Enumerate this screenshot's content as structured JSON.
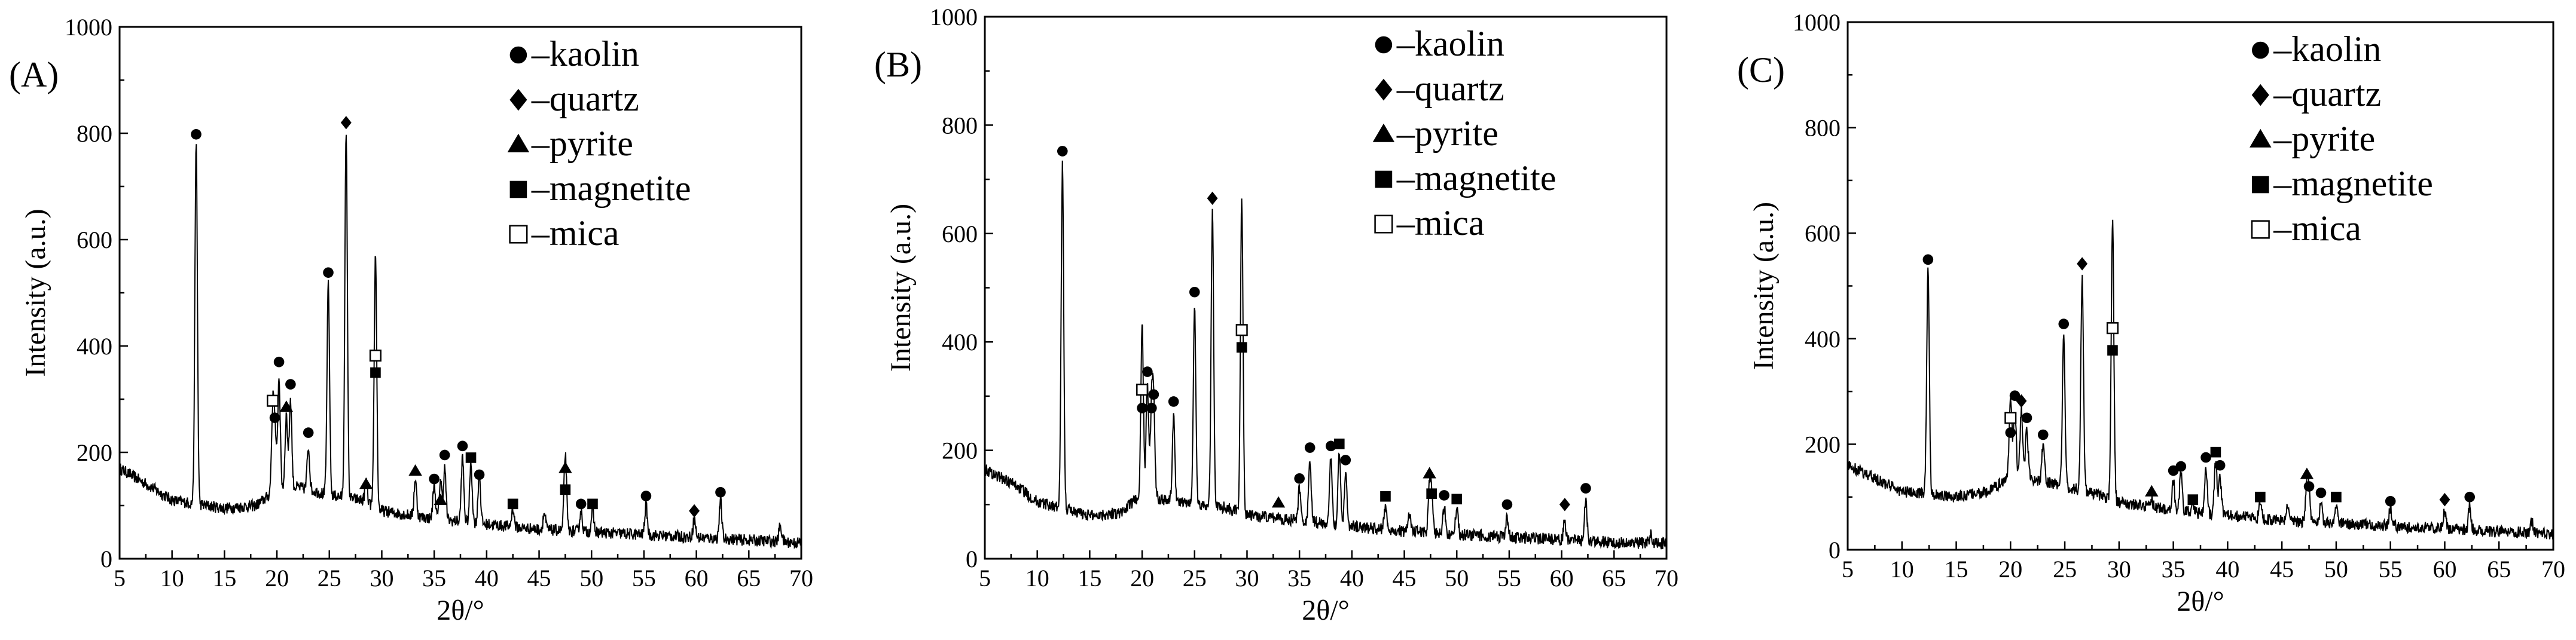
{
  "chart_data": [
    {
      "type": "line",
      "panel_label": "(A)",
      "xlabel": "2θ/°",
      "ylabel": "Intensity (a.u.)",
      "xlim": [
        5,
        70
      ],
      "ylim": [
        0,
        1000
      ],
      "xticks": [
        "5",
        "10",
        "15",
        "20",
        "25",
        "30",
        "35",
        "40",
        "45",
        "50",
        "55",
        "60",
        "65",
        "70"
      ],
      "yticks": [
        "0",
        "200",
        "400",
        "600",
        "800",
        "1000"
      ],
      "legend": {
        "position": "top-right",
        "entries": [
          {
            "marker": "circle",
            "label": "–kaolin"
          },
          {
            "marker": "diamond",
            "label": "–quartz"
          },
          {
            "marker": "triangle",
            "label": "–pyrite"
          },
          {
            "marker": "square",
            "label": "–magnetite"
          },
          {
            "marker": "open-square",
            "label": "–mica"
          }
        ]
      },
      "baseline": [
        [
          5,
          170
        ],
        [
          8,
          135
        ],
        [
          10,
          110
        ],
        [
          15,
          95
        ],
        [
          18,
          100
        ],
        [
          20,
          130
        ],
        [
          22,
          135
        ],
        [
          25,
          120
        ],
        [
          28,
          110
        ],
        [
          30,
          90
        ],
        [
          35,
          75
        ],
        [
          40,
          65
        ],
        [
          45,
          55
        ],
        [
          50,
          50
        ],
        [
          55,
          45
        ],
        [
          60,
          40
        ],
        [
          65,
          35
        ],
        [
          70,
          30
        ]
      ],
      "peaks": [
        {
          "x": 12.3,
          "y": 775,
          "marker": "circle",
          "my": 798
        },
        {
          "x": 19.8,
          "y": 240,
          "marker": "circle",
          "my": 265
        },
        {
          "x": 19.6,
          "y": 270,
          "marker": "open-square",
          "my": 297
        },
        {
          "x": 20.2,
          "y": 340,
          "marker": "circle",
          "my": 370
        },
        {
          "x": 20.9,
          "y": 270,
          "marker": "triangle",
          "my": 285
        },
        {
          "x": 21.3,
          "y": 300,
          "marker": "circle",
          "my": 328
        },
        {
          "x": 23.0,
          "y": 210,
          "marker": "circle",
          "my": 237
        },
        {
          "x": 24.9,
          "y": 515,
          "marker": "circle",
          "my": 538
        },
        {
          "x": 26.6,
          "y": 795,
          "marker": "diamond",
          "my": 820
        },
        {
          "x": 28.5,
          "y": 145,
          "marker": "triangle",
          "my": 140
        },
        {
          "x": 29.4,
          "y": 335,
          "marker": "square",
          "my": 350
        },
        {
          "x": 29.4,
          "y": 335,
          "marker": "open-square",
          "my": 382
        },
        {
          "x": 33.2,
          "y": 150,
          "marker": "triangle",
          "my": 165
        },
        {
          "x": 35.0,
          "y": 140,
          "marker": "circle",
          "my": 150
        },
        {
          "x": 35.6,
          "y": 150,
          "marker": "triangle",
          "my": 110
        },
        {
          "x": 36.0,
          "y": 170,
          "marker": "circle",
          "my": 195
        },
        {
          "x": 37.7,
          "y": 190,
          "marker": "circle",
          "my": 212
        },
        {
          "x": 38.5,
          "y": 180,
          "marker": "square",
          "my": 190
        },
        {
          "x": 39.3,
          "y": 160,
          "marker": "circle",
          "my": 158
        },
        {
          "x": 42.5,
          "y": 95,
          "marker": "square",
          "my": 103
        },
        {
          "x": 45.5,
          "y": 85
        },
        {
          "x": 47.5,
          "y": 125,
          "marker": "triangle",
          "my": 170
        },
        {
          "x": 47.5,
          "y": 125,
          "marker": "square",
          "my": 130
        },
        {
          "x": 49.0,
          "y": 90,
          "marker": "circle",
          "my": 103
        },
        {
          "x": 50.1,
          "y": 90,
          "marker": "square",
          "my": 103
        },
        {
          "x": 55.2,
          "y": 100,
          "marker": "circle",
          "my": 118
        },
        {
          "x": 59.8,
          "y": 75,
          "marker": "diamond",
          "my": 90
        },
        {
          "x": 62.3,
          "y": 110,
          "marker": "circle",
          "my": 125
        },
        {
          "x": 68.0,
          "y": 65
        }
      ]
    },
    {
      "type": "line",
      "panel_label": "(B)",
      "xlabel": "2θ/°",
      "ylabel": "Intensity (a.u.)",
      "xlim": [
        5,
        70
      ],
      "ylim": [
        0,
        1000
      ],
      "xticks": [
        "5",
        "10",
        "15",
        "20",
        "25",
        "30",
        "35",
        "40",
        "45",
        "50",
        "55",
        "60",
        "65",
        "70"
      ],
      "yticks": [
        "0",
        "200",
        "400",
        "600",
        "800",
        "1000"
      ],
      "legend": {
        "position": "top-right",
        "entries": [
          {
            "marker": "circle",
            "label": "–kaolin"
          },
          {
            "marker": "diamond",
            "label": "–quartz"
          },
          {
            "marker": "triangle",
            "label": "–pyrite"
          },
          {
            "marker": "square",
            "label": "–magnetite"
          },
          {
            "marker": "open-square",
            "label": "–mica"
          }
        ]
      },
      "baseline": [
        [
          5,
          165
        ],
        [
          8,
          135
        ],
        [
          10,
          105
        ],
        [
          15,
          80
        ],
        [
          18,
          85
        ],
        [
          20,
          120
        ],
        [
          22,
          110
        ],
        [
          25,
          100
        ],
        [
          28,
          95
        ],
        [
          30,
          80
        ],
        [
          35,
          70
        ],
        [
          40,
          60
        ],
        [
          45,
          50
        ],
        [
          50,
          45
        ],
        [
          55,
          40
        ],
        [
          60,
          35
        ],
        [
          65,
          30
        ],
        [
          70,
          28
        ]
      ],
      "peaks": [
        {
          "x": 12.4,
          "y": 725,
          "marker": "circle",
          "my": 752
        },
        {
          "x": 20.0,
          "y": 290,
          "marker": "open-square",
          "my": 312
        },
        {
          "x": 20.0,
          "y": 260,
          "marker": "circle",
          "my": 278
        },
        {
          "x": 20.5,
          "y": 320,
          "marker": "circle",
          "my": 345
        },
        {
          "x": 21.1,
          "y": 280,
          "marker": "circle",
          "my": 303
        },
        {
          "x": 20.9,
          "y": 270,
          "marker": "circle",
          "my": 278
        },
        {
          "x": 23.0,
          "y": 260,
          "marker": "circle",
          "my": 290
        },
        {
          "x": 25.0,
          "y": 460,
          "marker": "circle",
          "my": 492
        },
        {
          "x": 26.7,
          "y": 640,
          "marker": "diamond",
          "my": 665
        },
        {
          "x": 29.5,
          "y": 375,
          "marker": "square",
          "my": 390
        },
        {
          "x": 29.5,
          "y": 375,
          "marker": "open-square",
          "my": 422
        },
        {
          "x": 33.0,
          "y": 80,
          "marker": "triangle",
          "my": 103
        },
        {
          "x": 35.0,
          "y": 130,
          "marker": "circle",
          "my": 148
        },
        {
          "x": 36.0,
          "y": 180,
          "marker": "circle",
          "my": 205
        },
        {
          "x": 38.0,
          "y": 185,
          "marker": "circle",
          "my": 208
        },
        {
          "x": 38.8,
          "y": 200,
          "marker": "square",
          "my": 212
        },
        {
          "x": 39.4,
          "y": 160,
          "marker": "circle",
          "my": 182
        },
        {
          "x": 43.2,
          "y": 100,
          "marker": "square",
          "my": 115
        },
        {
          "x": 45.5,
          "y": 85
        },
        {
          "x": 47.4,
          "y": 130,
          "marker": "triangle",
          "my": 157
        },
        {
          "x": 47.6,
          "y": 110,
          "marker": "square",
          "my": 120
        },
        {
          "x": 48.8,
          "y": 95,
          "marker": "circle",
          "my": 117
        },
        {
          "x": 50.0,
          "y": 95,
          "marker": "square",
          "my": 110
        },
        {
          "x": 54.8,
          "y": 75,
          "marker": "circle",
          "my": 100
        },
        {
          "x": 60.3,
          "y": 70,
          "marker": "diamond",
          "my": 100
        },
        {
          "x": 62.3,
          "y": 110,
          "marker": "circle",
          "my": 130
        },
        {
          "x": 68.5,
          "y": 50
        }
      ]
    },
    {
      "type": "line",
      "panel_label": "(C)",
      "xlabel": "2θ/°",
      "ylabel": "Intensity (a.u.)",
      "xlim": [
        5,
        70
      ],
      "ylim": [
        0,
        1000
      ],
      "xticks": [
        "5",
        "10",
        "15",
        "20",
        "25",
        "30",
        "35",
        "40",
        "45",
        "50",
        "55",
        "60",
        "65",
        "70"
      ],
      "yticks": [
        "0",
        "200",
        "400",
        "600",
        "800",
        "1000"
      ],
      "legend": {
        "position": "top-right",
        "entries": [
          {
            "marker": "circle",
            "label": "–kaolin"
          },
          {
            "marker": "diamond",
            "label": "–quartz"
          },
          {
            "marker": "triangle",
            "label": "–pyrite"
          },
          {
            "marker": "square",
            "label": "–magnetite"
          },
          {
            "marker": "open-square",
            "label": "–mica"
          }
        ]
      },
      "baseline": [
        [
          5,
          160
        ],
        [
          8,
          130
        ],
        [
          10,
          110
        ],
        [
          15,
          100
        ],
        [
          18,
          110
        ],
        [
          20,
          140
        ],
        [
          22,
          135
        ],
        [
          25,
          120
        ],
        [
          28,
          105
        ],
        [
          30,
          90
        ],
        [
          35,
          75
        ],
        [
          40,
          65
        ],
        [
          45,
          55
        ],
        [
          50,
          50
        ],
        [
          55,
          45
        ],
        [
          60,
          40
        ],
        [
          65,
          35
        ],
        [
          70,
          30
        ]
      ],
      "peaks": [
        {
          "x": 12.4,
          "y": 535,
          "marker": "circle",
          "my": 550
        },
        {
          "x": 20.0,
          "y": 230,
          "marker": "open-square",
          "my": 250
        },
        {
          "x": 20.0,
          "y": 200,
          "marker": "circle",
          "my": 222
        },
        {
          "x": 20.4,
          "y": 270,
          "marker": "circle",
          "my": 292
        },
        {
          "x": 21.0,
          "y": 265,
          "marker": "diamond",
          "my": 282
        },
        {
          "x": 21.5,
          "y": 230,
          "marker": "circle",
          "my": 250
        },
        {
          "x": 23.0,
          "y": 200,
          "marker": "circle",
          "my": 218
        },
        {
          "x": 24.9,
          "y": 400,
          "marker": "circle",
          "my": 428
        },
        {
          "x": 26.6,
          "y": 520,
          "marker": "diamond",
          "my": 542
        },
        {
          "x": 29.4,
          "y": 360,
          "marker": "square",
          "my": 378
        },
        {
          "x": 29.4,
          "y": 360,
          "marker": "open-square",
          "my": 420
        },
        {
          "x": 33.0,
          "y": 95,
          "marker": "triangle",
          "my": 110
        },
        {
          "x": 35.0,
          "y": 130,
          "marker": "circle",
          "my": 150
        },
        {
          "x": 35.7,
          "y": 145,
          "marker": "circle",
          "my": 158
        },
        {
          "x": 36.8,
          "y": 90,
          "marker": "square",
          "my": 95
        },
        {
          "x": 38.0,
          "y": 160,
          "marker": "circle",
          "my": 175
        },
        {
          "x": 38.9,
          "y": 170,
          "marker": "square",
          "my": 185
        },
        {
          "x": 39.3,
          "y": 140,
          "marker": "circle",
          "my": 160
        },
        {
          "x": 43.0,
          "y": 95,
          "marker": "square",
          "my": 100
        },
        {
          "x": 45.5,
          "y": 80
        },
        {
          "x": 47.3,
          "y": 125,
          "marker": "triangle",
          "my": 143
        },
        {
          "x": 47.5,
          "y": 110,
          "marker": "circle",
          "my": 120
        },
        {
          "x": 48.6,
          "y": 90,
          "marker": "circle",
          "my": 108
        },
        {
          "x": 50.0,
          "y": 85,
          "marker": "square",
          "my": 100
        },
        {
          "x": 55.0,
          "y": 80,
          "marker": "circle",
          "my": 92
        },
        {
          "x": 60.0,
          "y": 75,
          "marker": "diamond",
          "my": 95
        },
        {
          "x": 62.3,
          "y": 85,
          "marker": "circle",
          "my": 100
        },
        {
          "x": 68.0,
          "y": 55
        }
      ]
    }
  ]
}
